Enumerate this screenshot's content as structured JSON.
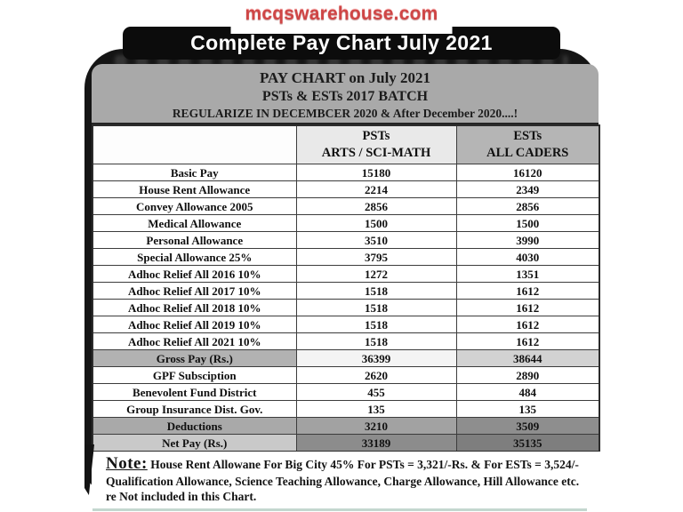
{
  "page": {
    "site": "mcqswarehouse.com",
    "banner": "Complete Pay Chart July 2021"
  },
  "chart_header": {
    "line1": "PAY CHART on July 2021",
    "line2": "PSTs & ESTs 2017 BATCH",
    "line3": "REGULARIZE IN DECEMBCER 2020 & After December 2020....!"
  },
  "table": {
    "col_pst": {
      "line1": "PSTs",
      "line2": "ARTS / SCI-MATH"
    },
    "col_est": {
      "line1": "ESTs",
      "line2": "ALL CADERS"
    },
    "rows": [
      {
        "label": "Basic Pay",
        "pst": "15180",
        "est": "16120",
        "style": "normal"
      },
      {
        "label": "House Rent Allowance",
        "pst": "2214",
        "est": "2349",
        "style": "normal"
      },
      {
        "label": "Convey Allowance 2005",
        "pst": "2856",
        "est": "2856",
        "style": "normal"
      },
      {
        "label": "Medical Allowance",
        "pst": "1500",
        "est": "1500",
        "style": "normal"
      },
      {
        "label": "Personal Allowance",
        "pst": "3510",
        "est": "3990",
        "style": "normal"
      },
      {
        "label": "Special Allowance 25%",
        "pst": "3795",
        "est": "4030",
        "style": "normal"
      },
      {
        "label": "Adhoc Relief All 2016 10%",
        "pst": "1272",
        "est": "1351",
        "style": "normal"
      },
      {
        "label": "Adhoc Relief All 2017 10%",
        "pst": "1518",
        "est": "1612",
        "style": "normal"
      },
      {
        "label": "Adhoc Relief All 2018 10%",
        "pst": "1518",
        "est": "1612",
        "style": "normal"
      },
      {
        "label": "Adhoc Relief All 2019 10%",
        "pst": "1518",
        "est": "1612",
        "style": "normal"
      },
      {
        "label": "Adhoc Relief All 2021 10%",
        "pst": "1518",
        "est": "1612",
        "style": "normal"
      },
      {
        "label": "Gross Pay (Rs.)",
        "pst": "36399",
        "est": "38644",
        "style": "gross"
      },
      {
        "label": "GPF Subsciption",
        "pst": "2620",
        "est": "2890",
        "style": "normal"
      },
      {
        "label": "Benevolent Fund District",
        "pst": "455",
        "est": "484",
        "style": "normal"
      },
      {
        "label": "Group Insurance Dist. Gov.",
        "pst": "135",
        "est": "135",
        "style": "normal"
      },
      {
        "label": "Deductions",
        "pst": "3210",
        "est": "3509",
        "style": "deductions"
      },
      {
        "label": "Net Pay (Rs.)",
        "pst": "33189",
        "est": "35135",
        "style": "netpay"
      }
    ]
  },
  "note": {
    "title": "Note:",
    "line1": "House Rent Allowane For Big City 45%  For PSTs = 3,321/-Rs.  & For ESTs = 3,524/-",
    "line2": "Qualification Allowance, Science Teaching Allowance, Charge Allowance, Hill Allowance etc.",
    "line3": "re Not included in this Chart."
  },
  "colors": {
    "accent_red": "#cf4646",
    "banner_bg": "#0c0c0c",
    "frame_bg": "#151515",
    "chart_header_grey": "#a9a9a9",
    "pst_header_grey": "#e9e9e9",
    "est_header_grey": "#b5b5b5",
    "gross_row_grey": "#d2d2d2",
    "deductions_row_grey": "#8e8e8e",
    "netpay_row_grey": "#7e7e7e",
    "bottom_strip_teal": "#c3d7cf"
  }
}
